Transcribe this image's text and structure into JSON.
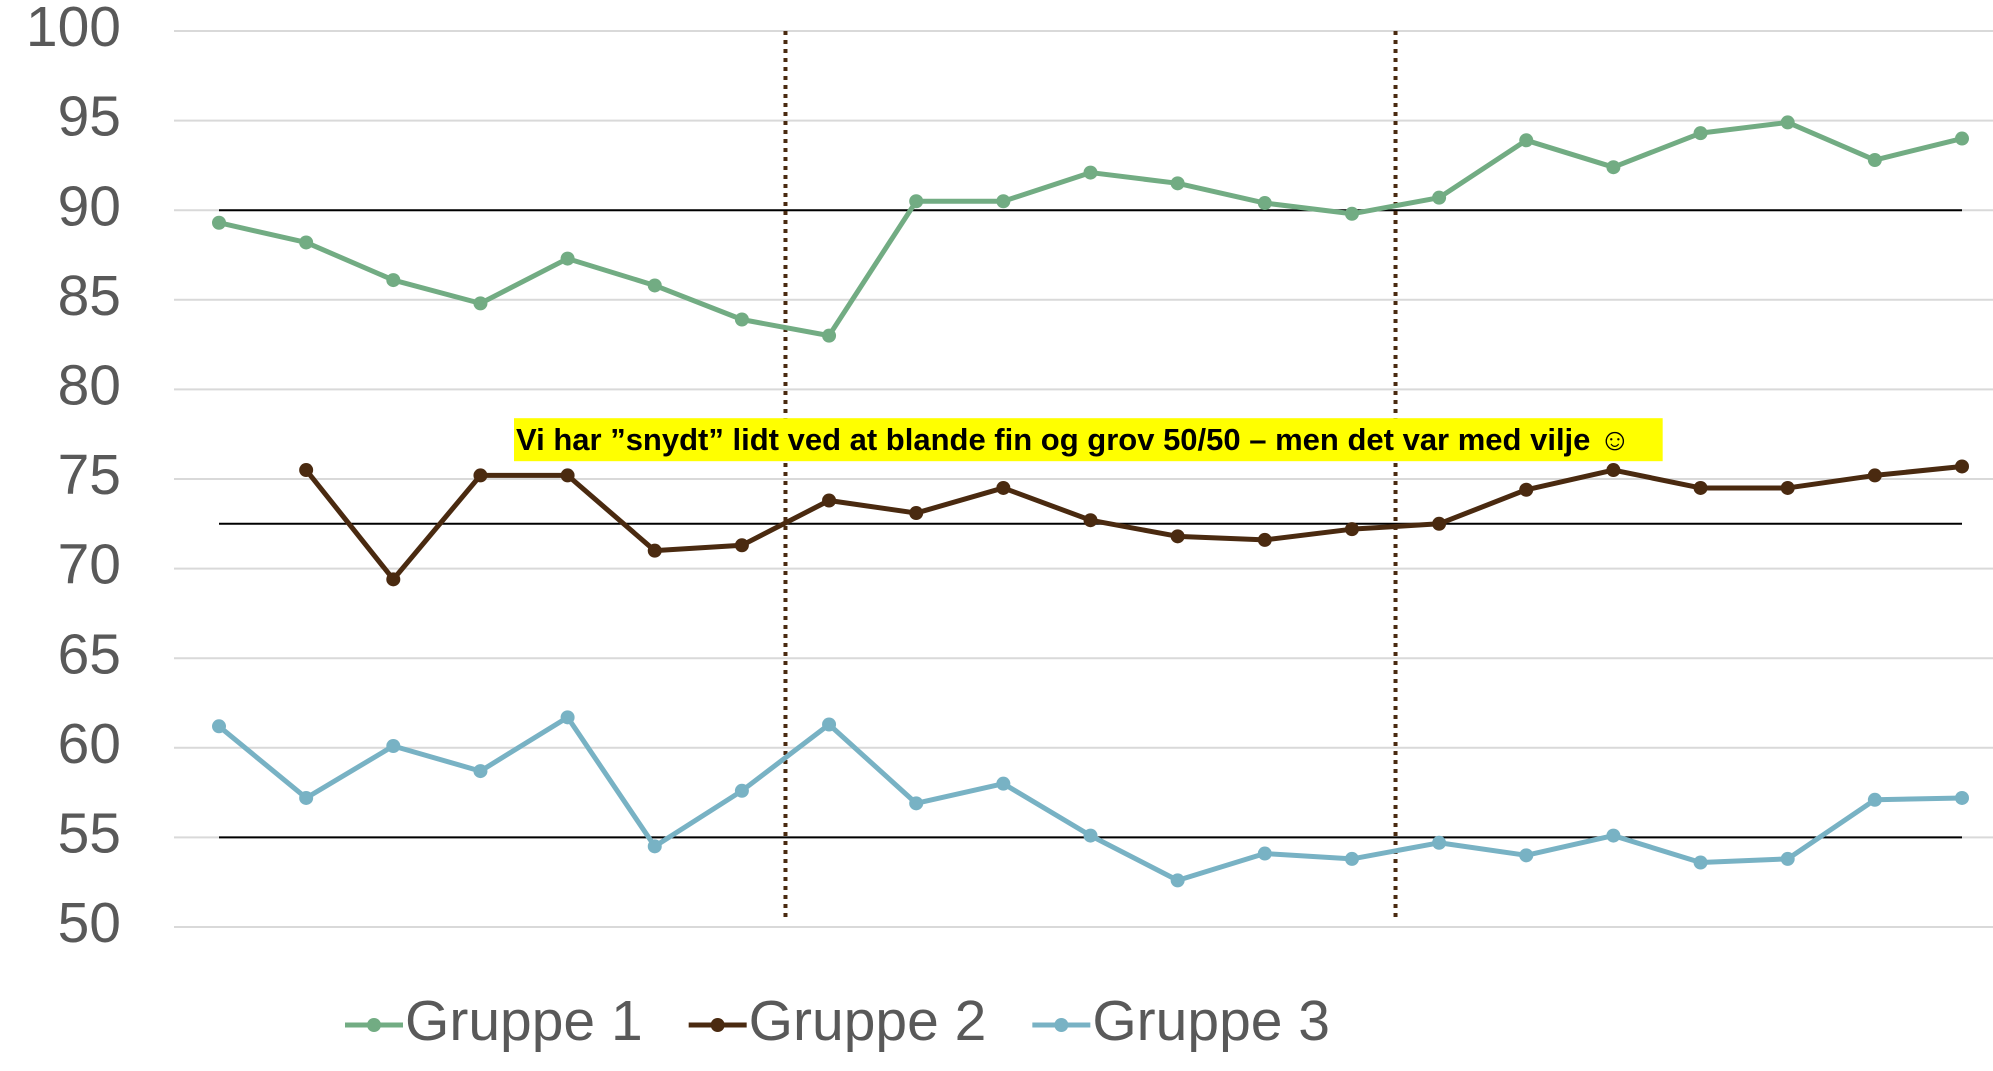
{
  "chart_data": {
    "type": "line",
    "categories": [
      null,
      null,
      null,
      null,
      null,
      null,
      null,
      null,
      null,
      null,
      null,
      null,
      null,
      null,
      null,
      null,
      null,
      null,
      null,
      null,
      null
    ],
    "series": [
      {
        "name": "Gruppe 1",
        "color": "#72ac83",
        "values": [
          89.3,
          88.2,
          86.1,
          84.8,
          87.3,
          85.8,
          83.9,
          83.0,
          90.5,
          90.5,
          92.1,
          91.5,
          90.4,
          89.8,
          90.7,
          93.9,
          92.4,
          94.3,
          94.9,
          92.8,
          94.0
        ]
      },
      {
        "name": "Gruppe 2",
        "color": "#4a2a10",
        "values": [
          null,
          75.5,
          69.4,
          75.2,
          75.2,
          71.0,
          71.3,
          73.8,
          73.1,
          74.5,
          72.7,
          71.8,
          71.6,
          72.2,
          72.5,
          74.4,
          75.5,
          74.5,
          74.5,
          75.2,
          75.7
        ]
      },
      {
        "name": "Gruppe 3",
        "color": "#78b2c4",
        "values": [
          61.2,
          57.2,
          60.1,
          58.7,
          61.7,
          54.5,
          57.6,
          61.3,
          56.9,
          58.0,
          55.1,
          52.6,
          54.1,
          53.8,
          54.7,
          54.0,
          55.1,
          53.6,
          53.8,
          57.1,
          57.2
        ]
      }
    ],
    "ylim": [
      50,
      100
    ],
    "yticks": [
      50,
      55,
      60,
      65,
      70,
      75,
      80,
      85,
      90,
      95,
      100
    ],
    "grid": true,
    "reference_lines": [
      90,
      72.5,
      55
    ],
    "period_dividers": [
      6.5,
      13.5
    ],
    "annotation": "Vi har ”snydt” lidt ved at blande fin og grov 50/50 – men det var med vilje ☺",
    "legend": "bottom"
  }
}
